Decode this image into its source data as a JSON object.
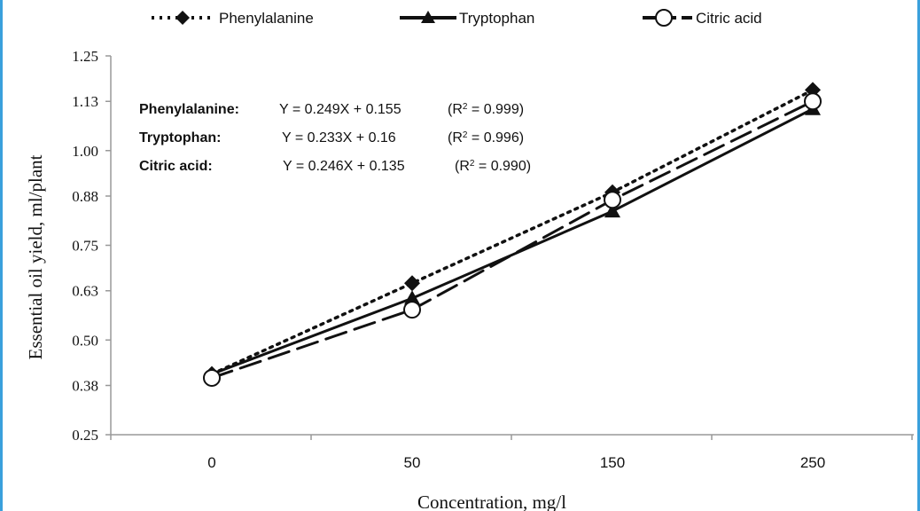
{
  "chart_data": {
    "type": "line",
    "categories": [
      "0",
      "50",
      "150",
      "250"
    ],
    "ylabel": "Essential oil yield, ml/plant",
    "xlabel": "Concentration, mg/l",
    "ylim": [
      0.25,
      1.25
    ],
    "yticks": [
      "0.25",
      "0.38",
      "0.50",
      "0.63",
      "0.75",
      "0.88",
      "1.00",
      "1.13",
      "1.25"
    ],
    "grid": false,
    "legend_position": "top",
    "series": [
      {
        "name": "Phenylalanine",
        "values": [
          0.41,
          0.65,
          0.89,
          1.16
        ],
        "line": "dotted",
        "marker": "diamond",
        "color": "#111111"
      },
      {
        "name": "Tryptophan",
        "values": [
          0.41,
          0.61,
          0.84,
          1.11
        ],
        "line": "solid",
        "marker": "triangle",
        "color": "#111111"
      },
      {
        "name": "Citric acid",
        "values": [
          0.4,
          0.58,
          0.87,
          1.13
        ],
        "line": "dashed",
        "marker": "open-circle",
        "color": "#111111"
      }
    ],
    "annotations": [
      {
        "name": "Phenylalanine:",
        "equation": "Y = 0.249X + 0.155",
        "r2": "0.999"
      },
      {
        "name": "Tryptophan:",
        "equation": "Y = 0.233X + 0.16",
        "r2": "0.996"
      },
      {
        "name": "Citric acid:",
        "equation": "Y = 0.246X + 0.135",
        "r2": "0.990"
      }
    ]
  }
}
